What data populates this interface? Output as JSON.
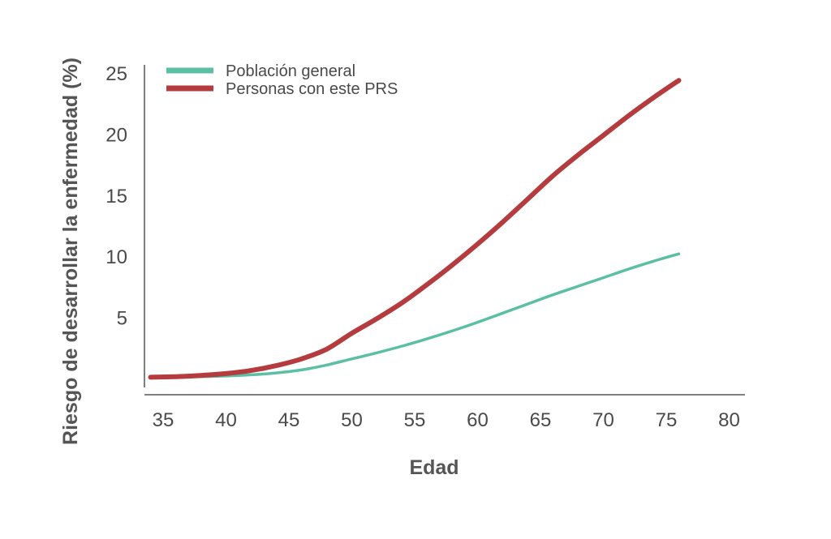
{
  "chart_data": {
    "type": "line",
    "title": "",
    "xlabel": "Edad",
    "ylabel": "Riesgo de desarrollar la enfermedad (%)",
    "xlim": [
      33,
      83
    ],
    "ylim": [
      -1,
      27
    ],
    "x_ticks": [
      35,
      40,
      45,
      50,
      55,
      60,
      65,
      70,
      75,
      80
    ],
    "y_ticks": [
      5,
      10,
      15,
      20,
      25
    ],
    "grid": false,
    "legend_position": "top-left",
    "series": [
      {
        "name": "Población general",
        "color": "#5bbfa4",
        "x": [
          34,
          36,
          38,
          40,
          42,
          44,
          46,
          48,
          50,
          52,
          54,
          56,
          58,
          60,
          62,
          64,
          66,
          68,
          70,
          72,
          74,
          76
        ],
        "y": [
          0.1,
          0.12,
          0.15,
          0.2,
          0.3,
          0.45,
          0.7,
          1.1,
          1.6,
          2.1,
          2.65,
          3.25,
          3.9,
          4.6,
          5.35,
          6.1,
          6.85,
          7.55,
          8.25,
          8.95,
          9.6,
          10.2
        ]
      },
      {
        "name": "Personas con este PRS",
        "color": "#b43b3e",
        "x": [
          34,
          36,
          38,
          40,
          42,
          44,
          46,
          48,
          50,
          52,
          54,
          56,
          58,
          60,
          62,
          64,
          66,
          68,
          70,
          72,
          74,
          76
        ],
        "y": [
          0.1,
          0.15,
          0.25,
          0.4,
          0.65,
          1.05,
          1.6,
          2.4,
          3.7,
          4.9,
          6.2,
          7.7,
          9.3,
          11.0,
          12.8,
          14.7,
          16.6,
          18.3,
          19.9,
          21.5,
          23.0,
          24.4
        ]
      }
    ]
  }
}
